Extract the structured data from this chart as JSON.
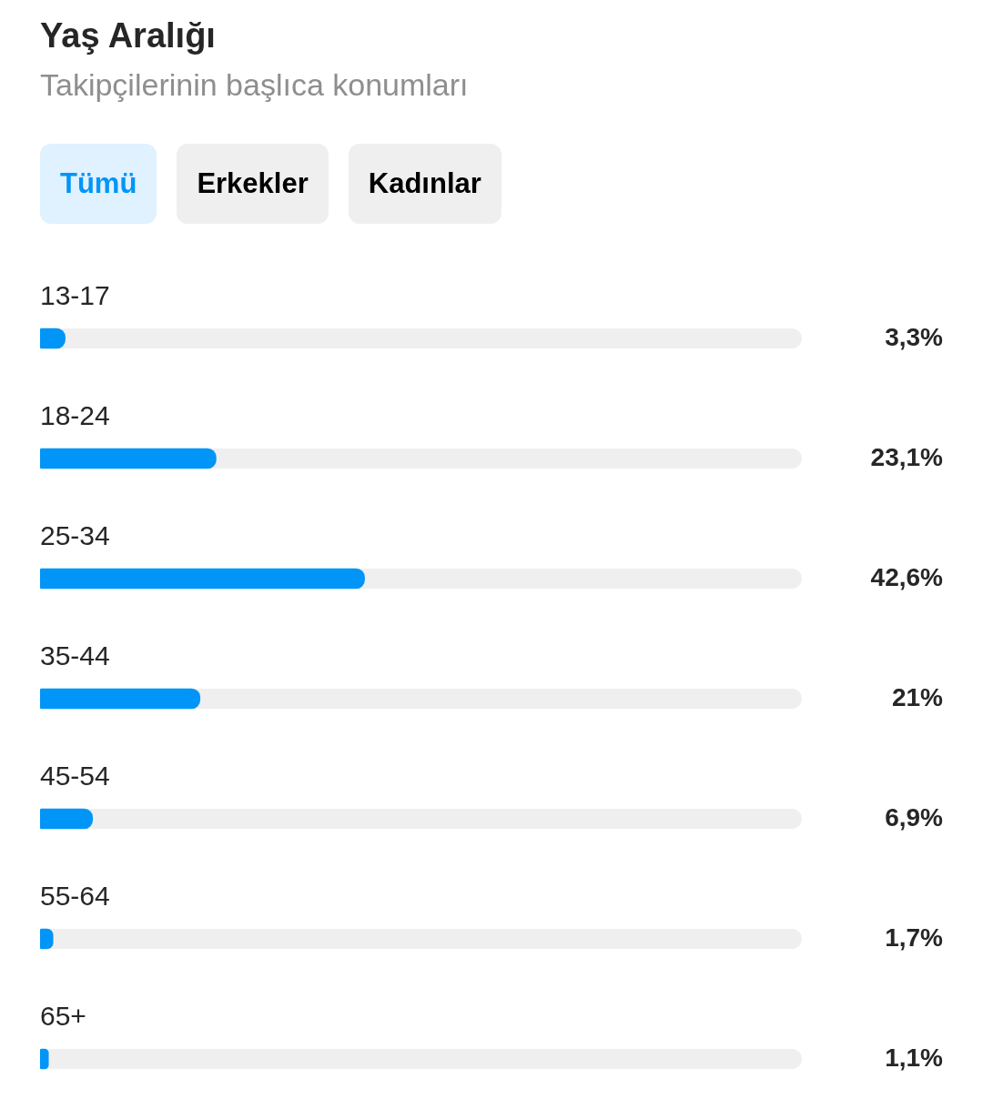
{
  "chart_data": {
    "type": "bar",
    "title": "Yaş Aralığı",
    "subtitle": "Takipçilerinin başlıca konumları",
    "annotations": [
      "Tümü",
      "Erkekler",
      "Kadınlar"
    ],
    "orientation": "horizontal",
    "categories": [
      "13-17",
      "18-24",
      "25-34",
      "35-44",
      "45-54",
      "55-64",
      "65+"
    ],
    "values": [
      3.3,
      23.1,
      42.6,
      21,
      6.9,
      1.7,
      1.1
    ],
    "value_labels": [
      "3,3%",
      "23,1%",
      "42,6%",
      "21%",
      "6,9%",
      "1,7%",
      "1,1%"
    ],
    "color": "#0095f6",
    "xlim": [
      0,
      100
    ],
    "tick_labels": "y",
    "legend": false
  }
}
